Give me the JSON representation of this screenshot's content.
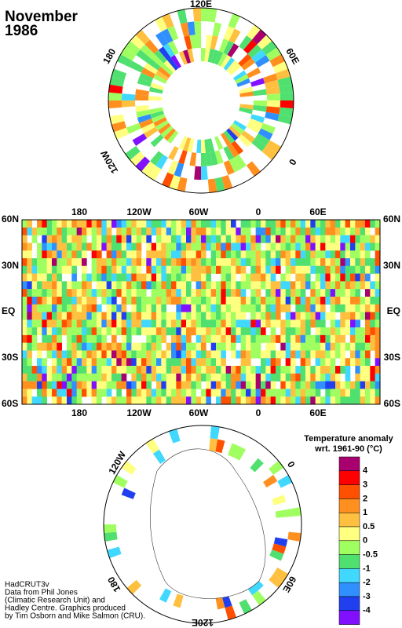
{
  "title_lines": [
    "November",
    "1986"
  ],
  "north_polar": {
    "labels": [
      "120E",
      "60E",
      "0",
      "120W",
      "180"
    ]
  },
  "map": {
    "top_lon": [
      "180",
      "120W",
      "60W",
      "0",
      "60E"
    ],
    "bottom_lon": [
      "180",
      "120W",
      "60W",
      "0",
      "60E"
    ],
    "left_lat": [
      "60N",
      "30N",
      "EQ",
      "30S",
      "60S"
    ],
    "right_lat": [
      "60N",
      "30N",
      "EQ",
      "30S",
      "60S"
    ]
  },
  "south_polar": {
    "labels": [
      "120W",
      "0",
      "60E",
      "120E",
      "180"
    ]
  },
  "legend": {
    "title": "Temperature anomaly",
    "subtitle": "wrt. 1961-90  (°C)",
    "colors": [
      "#a8006e",
      "#ff0000",
      "#ff5000",
      "#ff9020",
      "#ffc040",
      "#ffff80",
      "#a0ff60",
      "#50e070",
      "#40d8ff",
      "#3090ff",
      "#2040f0",
      "#8010ff"
    ],
    "labels": [
      "4",
      "3",
      "2",
      "1",
      "0.5",
      "0",
      "-0.5",
      "-1",
      "-2",
      "-3",
      "-4"
    ]
  },
  "credits": [
    "HadCRUT3v",
    "Data from Phil Jones",
    "(Climatic Research Unit) and",
    "Hadley Centre.  Graphics produced",
    "by Tim Osborn and Mike Salmon (CRU)."
  ]
}
